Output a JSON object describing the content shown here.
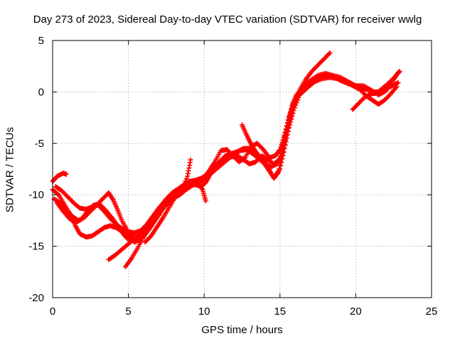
{
  "chart_data": {
    "type": "scatter",
    "title": "Day 273 of 2023, Sidereal Day-to-day VTEC variation (SDTVAR) for receiver wwlg",
    "xlabel": "GPS time / hours",
    "ylabel": "SDTVAR / TECUs",
    "xlim": [
      0,
      25
    ],
    "ylim": [
      -20,
      5
    ],
    "x_ticks": [
      0,
      5,
      10,
      15,
      20,
      25
    ],
    "y_ticks": [
      5,
      0,
      -5,
      -10,
      -15,
      -20
    ],
    "x_tick_labels": [
      "0",
      "5",
      "10",
      "15",
      "20",
      "25"
    ],
    "y_tick_labels": [
      "5",
      "0",
      "-5",
      "-10",
      "-15",
      "-20"
    ],
    "grid": true,
    "marker": "+",
    "color": "#ff0000",
    "series": [
      {
        "points": [
          [
            0,
            -8.7
          ],
          [
            0.3,
            -8.2
          ],
          [
            0.7,
            -7.9
          ],
          [
            0.9,
            -8.0
          ]
        ]
      },
      {
        "points": [
          [
            0,
            -9.5
          ],
          [
            0.4,
            -10.0
          ],
          [
            0.8,
            -11.0
          ],
          [
            1.2,
            -12.0
          ],
          [
            1.5,
            -13.0
          ],
          [
            1.8,
            -13.8
          ],
          [
            2.2,
            -14.1
          ],
          [
            2.6,
            -14.0
          ],
          [
            3.0,
            -13.6
          ],
          [
            3.4,
            -13.2
          ],
          [
            3.8,
            -13.0
          ],
          [
            4.2,
            -13.2
          ],
          [
            4.6,
            -13.6
          ],
          [
            5.0,
            -14.0
          ],
          [
            5.4,
            -14.6
          ],
          [
            5.8,
            -14.3
          ],
          [
            6.2,
            -13.5
          ],
          [
            6.6,
            -12.8
          ],
          [
            7.0,
            -12.0
          ],
          [
            7.4,
            -11.0
          ],
          [
            7.8,
            -10.2
          ],
          [
            8.2,
            -9.6
          ],
          [
            8.6,
            -9.2
          ],
          [
            9.0,
            -9.0
          ],
          [
            9.4,
            -9.0
          ],
          [
            9.8,
            -9.2
          ],
          [
            10.1,
            -8.8
          ],
          [
            10.4,
            -8.0
          ],
          [
            10.8,
            -7.5
          ],
          [
            11.2,
            -7.0
          ],
          [
            11.6,
            -6.5
          ],
          [
            12.0,
            -6.0
          ],
          [
            12.4,
            -5.7
          ],
          [
            12.8,
            -5.6
          ],
          [
            13.2,
            -6.0
          ],
          [
            13.6,
            -6.5
          ],
          [
            14.0,
            -7.0
          ],
          [
            14.4,
            -7.3
          ],
          [
            14.8,
            -7.0
          ],
          [
            15.1,
            -6.2
          ],
          [
            15.3,
            -5.0
          ],
          [
            15.5,
            -3.5
          ],
          [
            15.8,
            -2.0
          ],
          [
            16.1,
            -0.5
          ],
          [
            16.5,
            0.2
          ],
          [
            17.0,
            0.8
          ],
          [
            17.5,
            1.3
          ],
          [
            18.0,
            1.6
          ],
          [
            18.5,
            1.5
          ],
          [
            19.0,
            1.1
          ],
          [
            19.5,
            0.8
          ],
          [
            20.0,
            0.6
          ],
          [
            20.4,
            0.4
          ],
          [
            20.8,
            0.2
          ],
          [
            21.2,
            0.0
          ],
          [
            21.6,
            0.0
          ],
          [
            22.0,
            0.3
          ],
          [
            22.4,
            0.6
          ],
          [
            22.8,
            0.9
          ]
        ]
      },
      {
        "points": [
          [
            0.1,
            -10.4
          ],
          [
            0.5,
            -10.8
          ],
          [
            0.9,
            -11.4
          ],
          [
            1.3,
            -12.1
          ],
          [
            1.7,
            -12.5
          ],
          [
            2.1,
            -12.2
          ],
          [
            2.5,
            -11.6
          ],
          [
            2.9,
            -11.0
          ],
          [
            3.3,
            -10.4
          ],
          [
            3.7,
            -9.8
          ],
          [
            4.0,
            -10.5
          ],
          [
            4.3,
            -11.5
          ],
          [
            4.6,
            -12.6
          ],
          [
            5.0,
            -13.6
          ],
          [
            5.4,
            -14.2
          ],
          [
            5.8,
            -14.0
          ],
          [
            6.2,
            -13.4
          ],
          [
            6.6,
            -12.6
          ],
          [
            7.0,
            -11.8
          ],
          [
            7.4,
            -10.8
          ],
          [
            7.8,
            -10.2
          ],
          [
            8.2,
            -9.8
          ],
          [
            8.6,
            -9.4
          ],
          [
            9.0,
            -9.2
          ],
          [
            9.4,
            -8.8
          ],
          [
            9.8,
            -8.6
          ],
          [
            10.2,
            -8.0
          ],
          [
            10.6,
            -7.4
          ],
          [
            11.0,
            -6.8
          ],
          [
            11.4,
            -6.2
          ],
          [
            11.8,
            -6.0
          ],
          [
            12.2,
            -5.8
          ],
          [
            12.6,
            -5.5
          ],
          [
            13.0,
            -5.5
          ],
          [
            13.4,
            -6.0
          ],
          [
            13.8,
            -6.6
          ],
          [
            14.2,
            -7.5
          ],
          [
            14.6,
            -8.3
          ],
          [
            15.0,
            -7.5
          ],
          [
            15.3,
            -5.5
          ],
          [
            15.6,
            -3.5
          ],
          [
            15.9,
            -1.8
          ],
          [
            16.3,
            -0.3
          ],
          [
            16.8,
            0.4
          ],
          [
            17.3,
            1.0
          ],
          [
            17.8,
            1.3
          ],
          [
            18.3,
            1.4
          ],
          [
            18.8,
            1.3
          ],
          [
            19.3,
            1.0
          ],
          [
            19.8,
            0.6
          ],
          [
            20.3,
            0.2
          ],
          [
            20.7,
            -0.4
          ],
          [
            21.1,
            -0.8
          ],
          [
            21.5,
            -1.2
          ],
          [
            21.9,
            -0.8
          ],
          [
            22.3,
            -0.2
          ],
          [
            22.7,
            0.5
          ]
        ]
      },
      {
        "points": [
          [
            0.2,
            -9.2
          ],
          [
            0.6,
            -9.6
          ],
          [
            1.0,
            -10.2
          ],
          [
            1.4,
            -10.8
          ],
          [
            1.8,
            -11.3
          ],
          [
            2.2,
            -11.4
          ],
          [
            2.6,
            -11.2
          ],
          [
            3.0,
            -11.0
          ],
          [
            3.4,
            -11.6
          ],
          [
            3.8,
            -12.3
          ],
          [
            4.2,
            -12.9
          ],
          [
            4.6,
            -13.3
          ],
          [
            5.0,
            -13.6
          ],
          [
            5.4,
            -13.7
          ],
          [
            5.8,
            -13.5
          ],
          [
            6.2,
            -12.9
          ],
          [
            6.6,
            -12.1
          ],
          [
            7.0,
            -11.3
          ],
          [
            7.4,
            -10.6
          ],
          [
            7.8,
            -10.0
          ],
          [
            8.2,
            -9.6
          ],
          [
            8.6,
            -9.1
          ],
          [
            9.0,
            -8.7
          ],
          [
            9.4,
            -8.6
          ],
          [
            9.8,
            -8.4
          ],
          [
            10.2,
            -8.0
          ],
          [
            10.6,
            -7.3
          ],
          [
            11.0,
            -6.8
          ],
          [
            11.4,
            -6.6
          ],
          [
            11.8,
            -6.3
          ],
          [
            12.2,
            -6.2
          ],
          [
            12.6,
            -6.6
          ],
          [
            13.0,
            -7.0
          ],
          [
            13.4,
            -6.8
          ],
          [
            13.8,
            -6.2
          ],
          [
            14.2,
            -6.6
          ],
          [
            14.6,
            -7.0
          ],
          [
            15.0,
            -6.5
          ],
          [
            15.2,
            -5.0
          ],
          [
            15.5,
            -3.0
          ],
          [
            15.8,
            -1.6
          ],
          [
            16.1,
            -0.4
          ],
          [
            16.5,
            0.5
          ],
          [
            17.0,
            1.1
          ],
          [
            17.5,
            1.6
          ],
          [
            18.0,
            1.8
          ],
          [
            18.5,
            1.6
          ],
          [
            19.0,
            1.4
          ],
          [
            19.5,
            1.0
          ],
          [
            20.0,
            0.6
          ],
          [
            20.5,
            0.6
          ],
          [
            21.0,
            0.2
          ],
          [
            21.5,
            -0.3
          ],
          [
            22.0,
            0.1
          ],
          [
            22.5,
            1.2
          ],
          [
            22.8,
            1.9
          ]
        ]
      },
      {
        "points": [
          [
            0.3,
            -10.8
          ],
          [
            0.7,
            -11.6
          ],
          [
            1.1,
            -12.3
          ],
          [
            1.5,
            -12.7
          ],
          [
            1.9,
            -12.4
          ],
          [
            2.3,
            -11.6
          ],
          [
            2.7,
            -11.0
          ],
          [
            3.1,
            -10.9
          ],
          [
            3.5,
            -11.5
          ],
          [
            3.9,
            -12.2
          ],
          [
            4.3,
            -13.0
          ],
          [
            4.7,
            -13.9
          ],
          [
            5.1,
            -14.5
          ],
          [
            5.5,
            -14.3
          ],
          [
            5.9,
            -13.7
          ],
          [
            6.3,
            -12.9
          ],
          [
            6.7,
            -12.1
          ],
          [
            7.1,
            -11.2
          ],
          [
            7.5,
            -10.4
          ],
          [
            7.9,
            -9.8
          ],
          [
            8.3,
            -9.4
          ],
          [
            8.7,
            -9.0
          ],
          [
            9.1,
            -8.8
          ],
          [
            9.5,
            -8.9
          ],
          [
            9.9,
            -8.6
          ],
          [
            10.3,
            -7.7
          ],
          [
            10.7,
            -6.8
          ],
          [
            11.1,
            -5.7
          ],
          [
            11.5,
            -5.6
          ],
          [
            11.9,
            -6.2
          ],
          [
            12.3,
            -6.8
          ],
          [
            12.7,
            -6.4
          ],
          [
            13.1,
            -5.3
          ],
          [
            13.5,
            -5.0
          ],
          [
            13.9,
            -5.6
          ],
          [
            14.3,
            -6.4
          ],
          [
            14.7,
            -6.2
          ],
          [
            15.0,
            -5.6
          ],
          [
            15.3,
            -4.2
          ],
          [
            15.6,
            -2.4
          ],
          [
            15.9,
            -1.0
          ],
          [
            16.3,
            0.2
          ],
          [
            16.7,
            1.2
          ],
          [
            17.1,
            2.0
          ],
          [
            17.5,
            2.6
          ],
          [
            17.9,
            3.2
          ],
          [
            18.3,
            3.8
          ]
        ]
      },
      {
        "points": [
          [
            3.7,
            -16.3
          ],
          [
            4.1,
            -15.9
          ],
          [
            4.5,
            -15.4
          ],
          [
            4.9,
            -14.9
          ],
          [
            5.3,
            -14.4
          ],
          [
            5.7,
            -13.9
          ],
          [
            6.1,
            -13.3
          ],
          [
            6.5,
            -12.7
          ],
          [
            6.9,
            -12.0
          ],
          [
            7.3,
            -11.3
          ],
          [
            7.7,
            -10.7
          ],
          [
            8.1,
            -10.2
          ],
          [
            8.5,
            -9.6
          ],
          [
            8.9,
            -8.2
          ],
          [
            9.1,
            -6.6
          ]
        ]
      },
      {
        "points": [
          [
            4.8,
            -17.0
          ],
          [
            5.2,
            -16.2
          ],
          [
            5.6,
            -15.2
          ],
          [
            6.0,
            -14.1
          ],
          [
            6.4,
            -13.3
          ],
          [
            6.8,
            -12.4
          ],
          [
            7.2,
            -11.4
          ],
          [
            7.6,
            -10.6
          ],
          [
            8.0,
            -10.3
          ],
          [
            8.4,
            -10.0
          ],
          [
            8.8,
            -9.5
          ],
          [
            9.2,
            -9.1
          ],
          [
            9.6,
            -8.9
          ],
          [
            9.9,
            -9.5
          ],
          [
            10.1,
            -10.6
          ]
        ]
      },
      {
        "points": [
          [
            6.1,
            -14.6
          ],
          [
            6.5,
            -14.0
          ],
          [
            6.9,
            -13.1
          ],
          [
            7.3,
            -12.2
          ],
          [
            7.7,
            -11.2
          ],
          [
            8.1,
            -10.2
          ],
          [
            8.5,
            -9.8
          ]
        ]
      },
      {
        "points": [
          [
            12.5,
            -3.2
          ],
          [
            12.8,
            -4.2
          ],
          [
            13.1,
            -5.1
          ],
          [
            13.4,
            -5.8
          ],
          [
            13.7,
            -6.4
          ],
          [
            14.0,
            -6.8
          ],
          [
            14.3,
            -7.6
          ],
          [
            14.6,
            -8.4
          ],
          [
            14.9,
            -7.8
          ],
          [
            15.2,
            -5.9
          ],
          [
            15.5,
            -3.4
          ],
          [
            15.8,
            -1.3
          ],
          [
            16.1,
            -0.2
          ]
        ]
      },
      {
        "points": [
          [
            19.8,
            -1.7
          ],
          [
            20.2,
            -1.1
          ],
          [
            20.6,
            -0.5
          ],
          [
            21.0,
            -0.2
          ],
          [
            21.4,
            -0.1
          ],
          [
            21.8,
            0.4
          ],
          [
            22.2,
            0.9
          ],
          [
            22.6,
            1.5
          ],
          [
            22.9,
            2.0
          ]
        ]
      }
    ]
  }
}
